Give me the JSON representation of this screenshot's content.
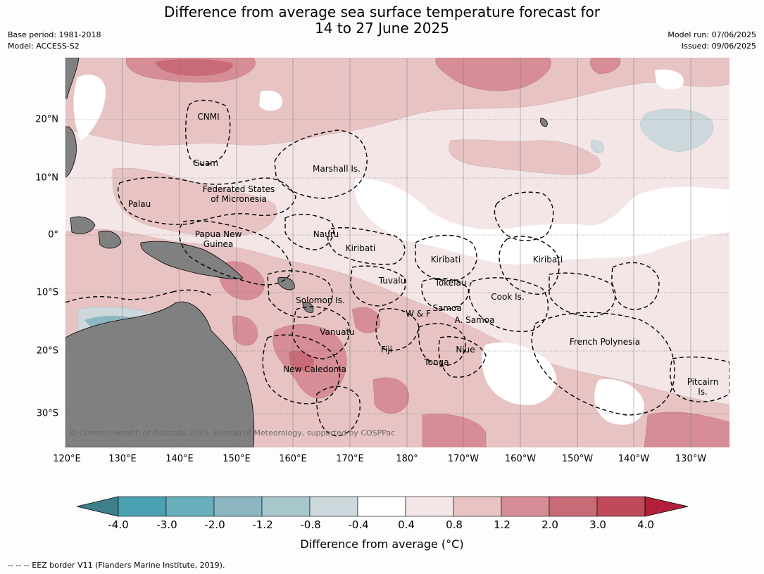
{
  "title_line1": "Difference from average sea surface temperature forecast for",
  "title_line2": "14 to 27 June 2025",
  "base_period": "Base period: 1981-2018",
  "model": "Model: ACCESS-S2",
  "model_run": "Model run: 07/06/2025",
  "issued": "Issued: 09/06/2025",
  "lat_labels": [
    "20°N",
    "10°N",
    "0°",
    "10°S",
    "20°S",
    "30°S"
  ],
  "lon_labels": [
    "120°E",
    "130°E",
    "140°E",
    "150°E",
    "160°E",
    "170°E",
    "180°",
    "170°W",
    "160°W",
    "150°W",
    "140°W",
    "130°W"
  ],
  "places": {
    "cnmi": "CNMI",
    "guam": "Guam",
    "marshall": "Marshall Is.",
    "fsm_1": "Federated States",
    "fsm_2": "of Micronesia",
    "palau": "Palau",
    "png_1": "Papua New",
    "png_2": "Guinea",
    "nauru": "Nauru",
    "kiribati_w": "Kiribati",
    "kiribati_c": "Kiribati",
    "kiribati_e": "Kiribati",
    "tuvalu": "Tuvalu",
    "tokelau": "Tokelau",
    "cook": "Cook Is.",
    "solomon": "Solomon Is.",
    "samoa": "Samoa",
    "wf": "W & F",
    "asamoa": "A. Samoa",
    "vanuatu": "Vanuatu",
    "fiji": "Fiji",
    "niue": "Niue",
    "tonga": "Tonga",
    "newcal": "New Caledonia",
    "frpoly": "French Polynesia",
    "pitcairn_1": "Pitcairn",
    "pitcairn_2": "Is."
  },
  "copyright": "© Commonwealth of Australia 2025, Bureau of Meteorology, supported by COSPPac",
  "colorbar": {
    "label": "Difference from average (°C)",
    "ticks": [
      "-4.0",
      "-3.0",
      "-2.0",
      "-1.2",
      "-0.8",
      "-0.4",
      "0.4",
      "0.8",
      "1.2",
      "2.0",
      "3.0",
      "4.0"
    ],
    "colors": [
      "#3d7f8b",
      "#4ba1b2",
      "#6aafbd",
      "#8bb6c2",
      "#a8c7cd",
      "#ccd8db",
      "#ffffff",
      "#f4e6e6",
      "#e7c4c3",
      "#d68d96",
      "#c96a77",
      "#c04a5a",
      "#b21f3a"
    ]
  },
  "footer": "--  --  -- EEZ border V11 (Flanders Marine Institute, 2019)."
}
